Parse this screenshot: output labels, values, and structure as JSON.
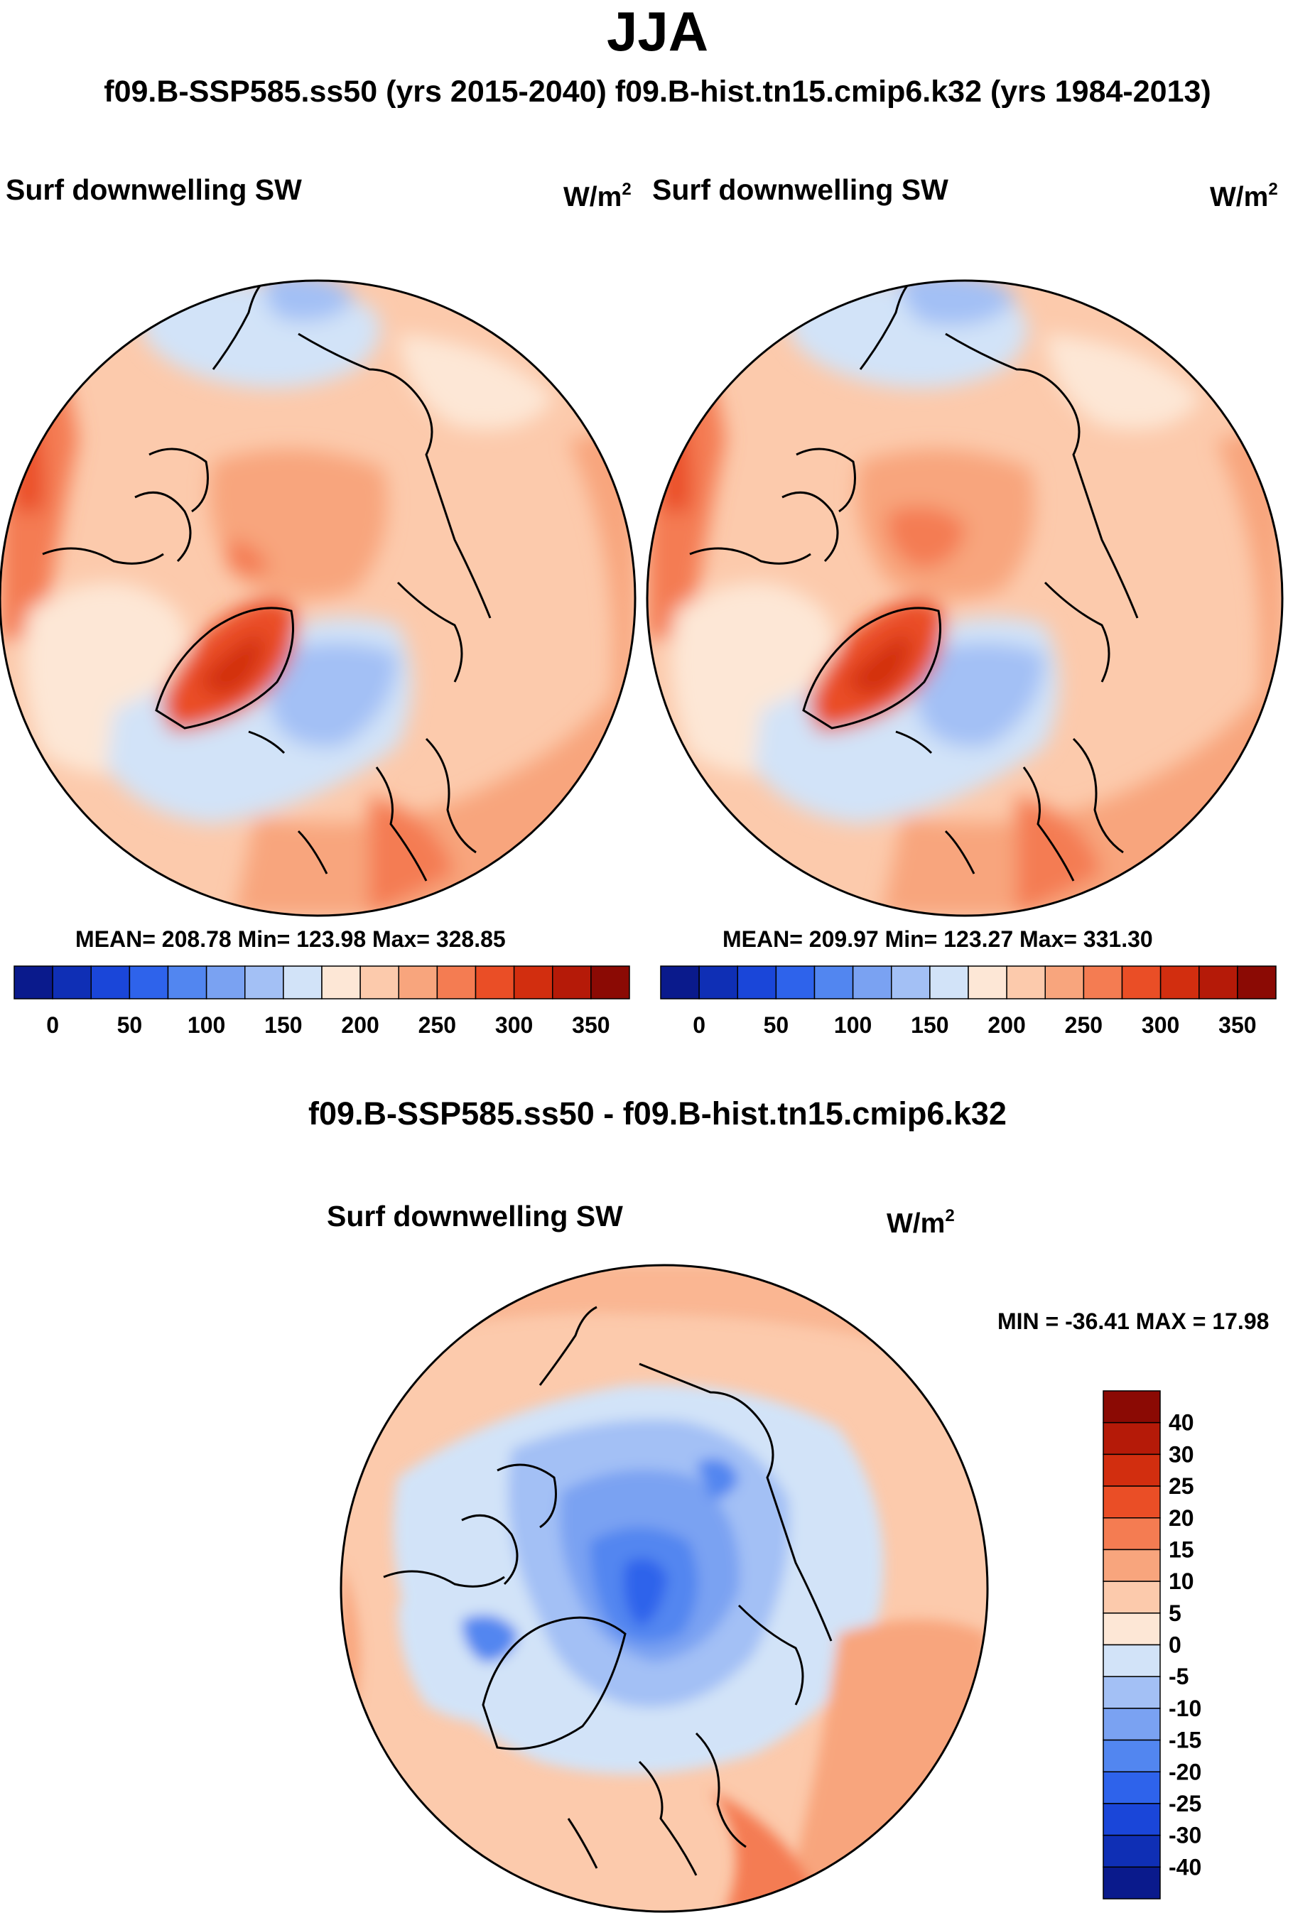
{
  "figure": {
    "title": "JJA",
    "subtitle": "f09.B-SSP585.ss50 (yrs 2015-2040)  f09.B-hist.tn15.cmip6.k32 (yrs 1984-2013)",
    "diff_title": "f09.B-SSP585.ss50 - f09.B-hist.tn15.cmip6.k32"
  },
  "chart_data": [
    {
      "type": "contour-map",
      "projection": "polar-stereographic (north)",
      "title": "Surf downwelling SW",
      "units": "W/m",
      "units_sup": "2",
      "case": "f09.B-SSP585.ss50 (yrs 2015-2040)",
      "stats": {
        "mean": "208.78",
        "min": "123.98",
        "max": "328.85"
      },
      "stats_text": "MEAN= 208.78  Min= 123.98  Max= 328.85",
      "colorbar": {
        "orientation": "horizontal",
        "levels": [
          0,
          25,
          50,
          75,
          100,
          125,
          150,
          175,
          200,
          225,
          250,
          275,
          300,
          325,
          350
        ],
        "tick_labels": [
          "0",
          "50",
          "100",
          "150",
          "200",
          "250",
          "300",
          "350"
        ],
        "colors": [
          "#0a1a8c",
          "#0f2fb5",
          "#1a46d9",
          "#2e63eb",
          "#5286f0",
          "#7aa2f2",
          "#a3c0f5",
          "#d2e3f8",
          "#fde7d6",
          "#fccaac",
          "#f8a57d",
          "#f47c52",
          "#ea4e26",
          "#d22e0f",
          "#b51a08",
          "#8b0a04"
        ]
      }
    },
    {
      "type": "contour-map",
      "projection": "polar-stereographic (north)",
      "title": "Surf downwelling SW",
      "units": "W/m",
      "units_sup": "2",
      "case": "f09.B-hist.tn15.cmip6.k32 (yrs 1984-2013)",
      "stats": {
        "mean": "209.97",
        "min": "123.27",
        "max": "331.30"
      },
      "stats_text": "MEAN= 209.97  Min= 123.27  Max= 331.30",
      "colorbar": {
        "orientation": "horizontal",
        "levels": [
          0,
          25,
          50,
          75,
          100,
          125,
          150,
          175,
          200,
          225,
          250,
          275,
          300,
          325,
          350
        ],
        "tick_labels": [
          "0",
          "50",
          "100",
          "150",
          "200",
          "250",
          "300",
          "350"
        ],
        "colors": [
          "#0a1a8c",
          "#0f2fb5",
          "#1a46d9",
          "#2e63eb",
          "#5286f0",
          "#7aa2f2",
          "#a3c0f5",
          "#d2e3f8",
          "#fde7d6",
          "#fccaac",
          "#f8a57d",
          "#f47c52",
          "#ea4e26",
          "#d22e0f",
          "#b51a08",
          "#8b0a04"
        ]
      }
    },
    {
      "type": "contour-map",
      "projection": "polar-stereographic (north)",
      "title": "Surf downwelling SW",
      "units": "W/m",
      "units_sup": "2",
      "case": "difference",
      "stats": {
        "min": "-36.41",
        "max": "17.98"
      },
      "stats_text": "MIN = -36.41 MAX =  17.98",
      "colorbar": {
        "orientation": "vertical",
        "levels": [
          -40,
          -30,
          -25,
          -20,
          -15,
          -10,
          -5,
          0,
          5,
          10,
          15,
          20,
          25,
          30,
          40
        ],
        "tick_labels": [
          "40",
          "30",
          "25",
          "20",
          "15",
          "10",
          "5",
          "0",
          "-5",
          "-10",
          "-15",
          "-20",
          "-25",
          "-30",
          "-40"
        ],
        "colors": [
          "#8b0a04",
          "#b51a08",
          "#d22e0f",
          "#ea4e26",
          "#f47c52",
          "#f8a57d",
          "#fccaac",
          "#fde7d6",
          "#d2e3f8",
          "#a3c0f5",
          "#7aa2f2",
          "#5286f0",
          "#2e63eb",
          "#1a46d9",
          "#0f2fb5",
          "#0a1a8c"
        ]
      }
    }
  ]
}
